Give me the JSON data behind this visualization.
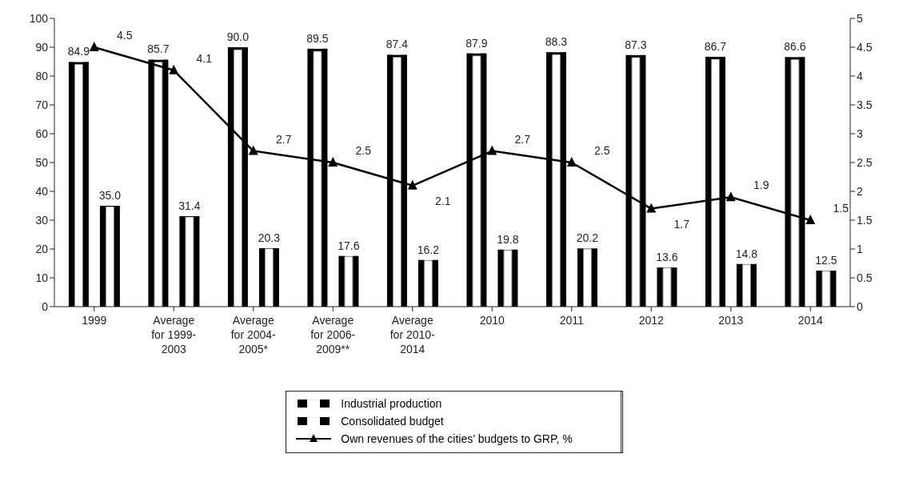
{
  "chart_data": {
    "type": "bar",
    "categories": [
      "1999",
      "Average for 1999-2003",
      "Average for 2004-2005*",
      "Average for 2006-2009**",
      "Average for 2010-2014",
      "2010",
      "2011",
      "2012",
      "2013",
      "2014"
    ],
    "series": [
      {
        "name": "Industrial production",
        "color": "#000000",
        "values": [
          84.9,
          85.7,
          90.0,
          89.5,
          87.4,
          87.9,
          88.3,
          87.3,
          86.7,
          86.6
        ],
        "value_labels": [
          "84.9",
          "85.7",
          "90.0",
          "89.5",
          "87.4",
          "87.9",
          "88.3",
          "87.3",
          "86.7",
          "86.6"
        ]
      },
      {
        "name": "Consolidated budget",
        "color": "#000000",
        "values": [
          35.0,
          31.4,
          20.3,
          17.6,
          16.2,
          19.8,
          20.2,
          13.6,
          14.8,
          12.5
        ],
        "value_labels": [
          "35.0",
          "31.4",
          "20.3",
          "17.6",
          "16.2",
          "19.8",
          "20.2",
          "13.6",
          "14.8",
          "12.5"
        ]
      },
      {
        "name": "Own revenues of the cities’ budgets to GRP, %",
        "type": "line",
        "axis": "y2",
        "color": "#000000",
        "marker": "triangle",
        "values": [
          4.5,
          4.1,
          2.7,
          2.5,
          2.1,
          2.7,
          2.5,
          1.7,
          1.9,
          1.5
        ],
        "value_labels": [
          "4.5",
          "4.1",
          "2.7",
          "2.5",
          "2.1",
          "2.7",
          "2.5",
          "1.7",
          "1.9",
          "1.5"
        ]
      }
    ],
    "ylim": [
      0,
      100
    ],
    "yticks": [
      0,
      10,
      20,
      30,
      40,
      50,
      60,
      70,
      80,
      90,
      100
    ],
    "y2lim": [
      0,
      5
    ],
    "y2ticks": [
      0,
      0.5,
      1,
      1.5,
      2,
      2.5,
      3,
      3.5,
      4,
      4.5,
      5
    ],
    "legend": "bottom"
  }
}
